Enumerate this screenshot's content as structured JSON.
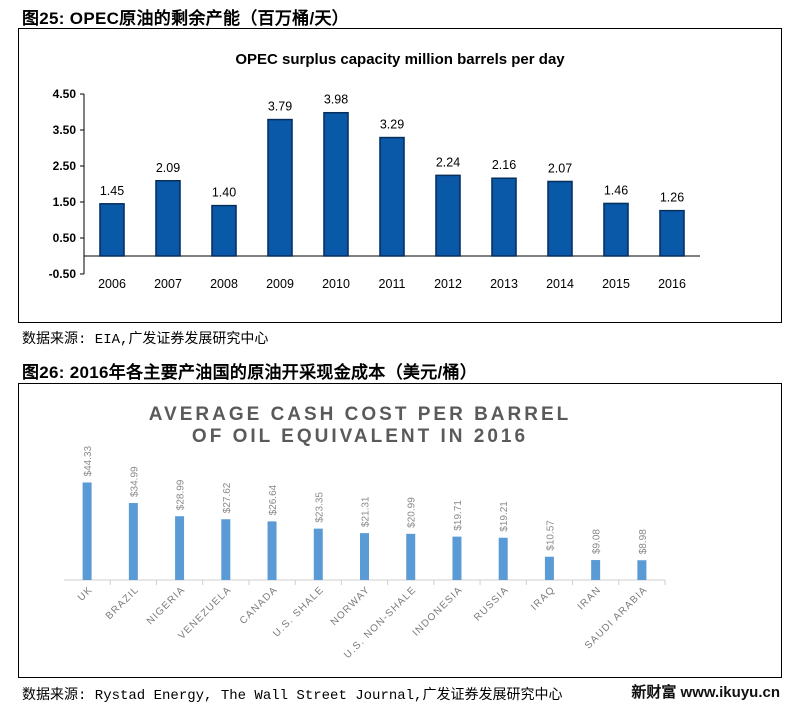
{
  "figure25": {
    "caption": "图25:  OPEC原油的剩余产能（百万桶/天）",
    "source": "数据来源: EIA,广发证券发展研究中心"
  },
  "figure26": {
    "caption": "图26:  2016年各主要产油国的原油开采现金成本（美元/桶）",
    "source": "数据来源: Rystad Energy, The Wall Street Journal,广发证券发展研究中心"
  },
  "watermark": "新财富 www.ikuyu.cn",
  "colors": {
    "bar1": "#0a58a8",
    "bar1_stroke": "#062f5e",
    "bar2": "#5b9bd5",
    "title2": "#5a5a5a"
  },
  "chart_data": [
    {
      "type": "bar",
      "title": "OPEC surplus capacity million barrels per day",
      "categories": [
        "2006",
        "2007",
        "2008",
        "2009",
        "2010",
        "2011",
        "2012",
        "2013",
        "2014",
        "2015",
        "2016"
      ],
      "values": [
        1.45,
        2.09,
        1.4,
        3.79,
        3.98,
        3.29,
        2.24,
        2.16,
        2.07,
        1.46,
        1.26
      ],
      "data_labels": [
        "1.45",
        "2.09",
        "1.40",
        "3.79",
        "3.98",
        "3.29",
        "2.24",
        "2.16",
        "2.07",
        "1.46",
        "1.26"
      ],
      "yticks": [
        "-0.50",
        "0.50",
        "1.50",
        "2.50",
        "3.50",
        "4.50"
      ],
      "ytick_values": [
        -0.5,
        0.5,
        1.5,
        2.5,
        3.5,
        4.5
      ],
      "ylim": [
        -0.5,
        4.5
      ],
      "xlabel": "",
      "ylabel": "",
      "grid": false
    },
    {
      "type": "bar",
      "title_lines": [
        "AVERAGE CASH COST PER BARREL",
        "OF OIL EQUIVALENT  IN 2016"
      ],
      "categories": [
        "UK",
        "BRAZIL",
        "NIGERIA",
        "VENEZUELA",
        "CANADA",
        "U.S. SHALE",
        "NORWAY",
        "U.S. NON-SHALE",
        "INDONESIA",
        "RUSSIA",
        "IRAQ",
        "IRAN",
        "SAUDI ARABIA"
      ],
      "values": [
        44.33,
        34.99,
        28.99,
        27.62,
        26.64,
        23.35,
        21.31,
        20.99,
        19.71,
        19.21,
        10.57,
        9.08,
        8.98
      ],
      "data_labels": [
        "$44.33",
        "$34.99",
        "$28.99",
        "$27.62",
        "$26.64",
        "$23.35",
        "$21.31",
        "$20.99",
        "$19.71",
        "$19.21",
        "$10.57",
        "$9.08",
        "$8.98"
      ],
      "ylim": [
        0,
        50
      ],
      "xlabel": "",
      "ylabel": "",
      "grid": false
    }
  ]
}
